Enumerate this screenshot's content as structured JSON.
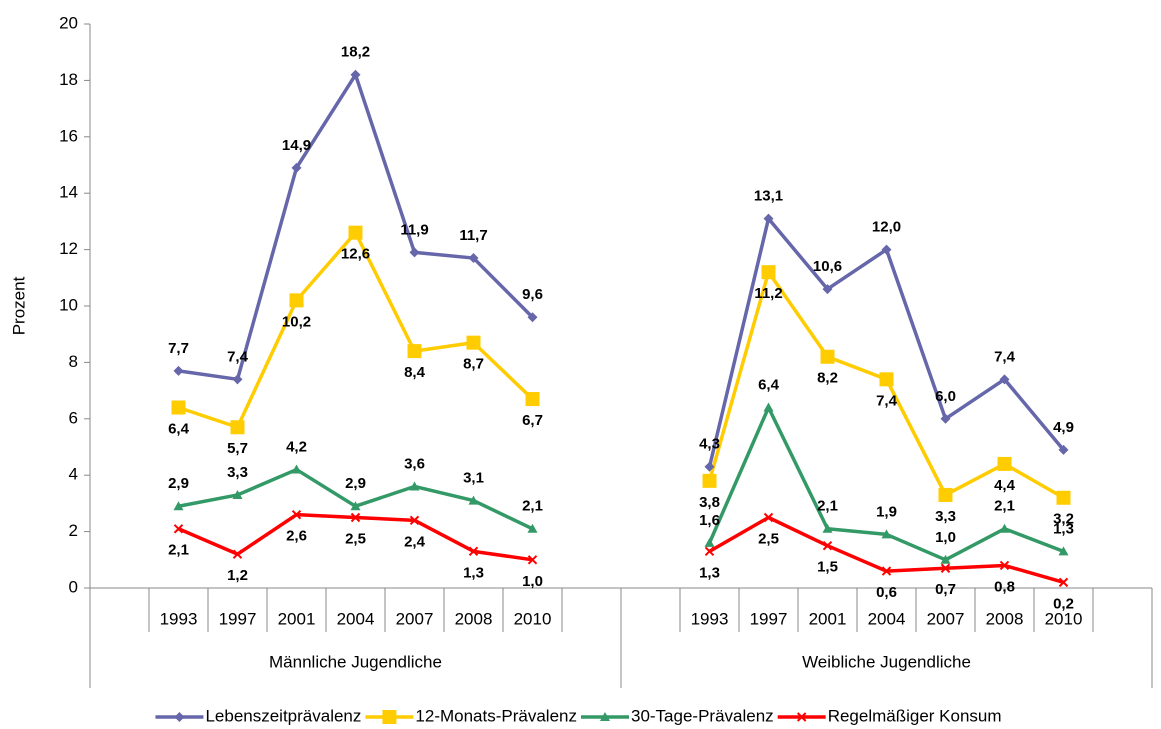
{
  "chart_data": {
    "type": "line",
    "y_label": "Prozent",
    "categories": [
      null,
      "1993",
      "1997",
      "2001",
      "2004",
      "2007",
      "2008",
      "2010",
      null,
      null,
      "1993",
      "1997",
      "2001",
      "2004",
      "2007",
      "2008",
      "2010",
      null
    ],
    "category_groups": [
      "Männliche Jugendliche",
      "Weibliche Jugendliche"
    ],
    "ylim": [
      0,
      20
    ],
    "yticks": [
      0,
      2,
      4,
      6,
      8,
      10,
      12,
      14,
      16,
      18,
      20
    ],
    "legend": "bottom",
    "series": [
      {
        "name": "Lebenszeitprävalenz",
        "color": "#6666aa",
        "marker": "diamond",
        "values": [
          null,
          7.7,
          7.4,
          14.9,
          18.2,
          11.9,
          11.7,
          9.6,
          null,
          null,
          4.3,
          13.1,
          10.6,
          12.0,
          6.0,
          7.4,
          4.9,
          null
        ],
        "value_labels": [
          null,
          "7,7",
          "7,4",
          "14,9",
          "18,2",
          "11,9",
          "11,7",
          "9,6",
          null,
          null,
          "4,3",
          "13,1",
          "10,6",
          "12,0",
          "6,0",
          "7,4",
          "4,9",
          null
        ]
      },
      {
        "name": "12-Monats-Prävalenz",
        "color": "#ffcc00",
        "marker": "square",
        "values": [
          null,
          6.4,
          5.7,
          10.2,
          12.6,
          8.4,
          8.7,
          6.7,
          null,
          null,
          3.8,
          11.2,
          8.2,
          7.4,
          3.3,
          4.4,
          3.2,
          null
        ],
        "value_labels": [
          null,
          "6,4",
          "5,7",
          "10,2",
          "12,6",
          "8,4",
          "8,7",
          "6,7",
          null,
          null,
          "3,8",
          "11,2",
          "8,2",
          "7,4",
          "3,3",
          "4,4",
          "3,2",
          null
        ]
      },
      {
        "name": "30-Tage-Prävalenz",
        "color": "#339966",
        "marker": "triangle",
        "values": [
          null,
          2.9,
          3.3,
          4.2,
          2.9,
          3.6,
          3.1,
          2.1,
          null,
          null,
          1.6,
          6.4,
          2.1,
          1.9,
          1.0,
          2.1,
          1.3,
          null
        ],
        "value_labels": [
          null,
          "2,9",
          "3,3",
          "4,2",
          "2,9",
          "3,6",
          "3,1",
          "2,1",
          null,
          null,
          "1,6",
          "6,4",
          "2,1",
          "1,9",
          "1,0",
          "2,1",
          "1,3",
          null
        ]
      },
      {
        "name": "Regelmäßiger Konsum",
        "color": "#ff0000",
        "marker": "x",
        "values": [
          null,
          2.1,
          1.2,
          2.6,
          2.5,
          2.4,
          1.3,
          1.0,
          null,
          null,
          1.3,
          2.5,
          1.5,
          0.6,
          0.7,
          0.8,
          0.2,
          null
        ],
        "value_labels": [
          null,
          "2,1",
          "1,2",
          "2,6",
          "2,5",
          "2,4",
          "1,3",
          "1,0",
          null,
          null,
          "1,3",
          "2,5",
          "1,5",
          "0,6",
          "0,7",
          "0,8",
          "0,2",
          null
        ]
      }
    ]
  }
}
